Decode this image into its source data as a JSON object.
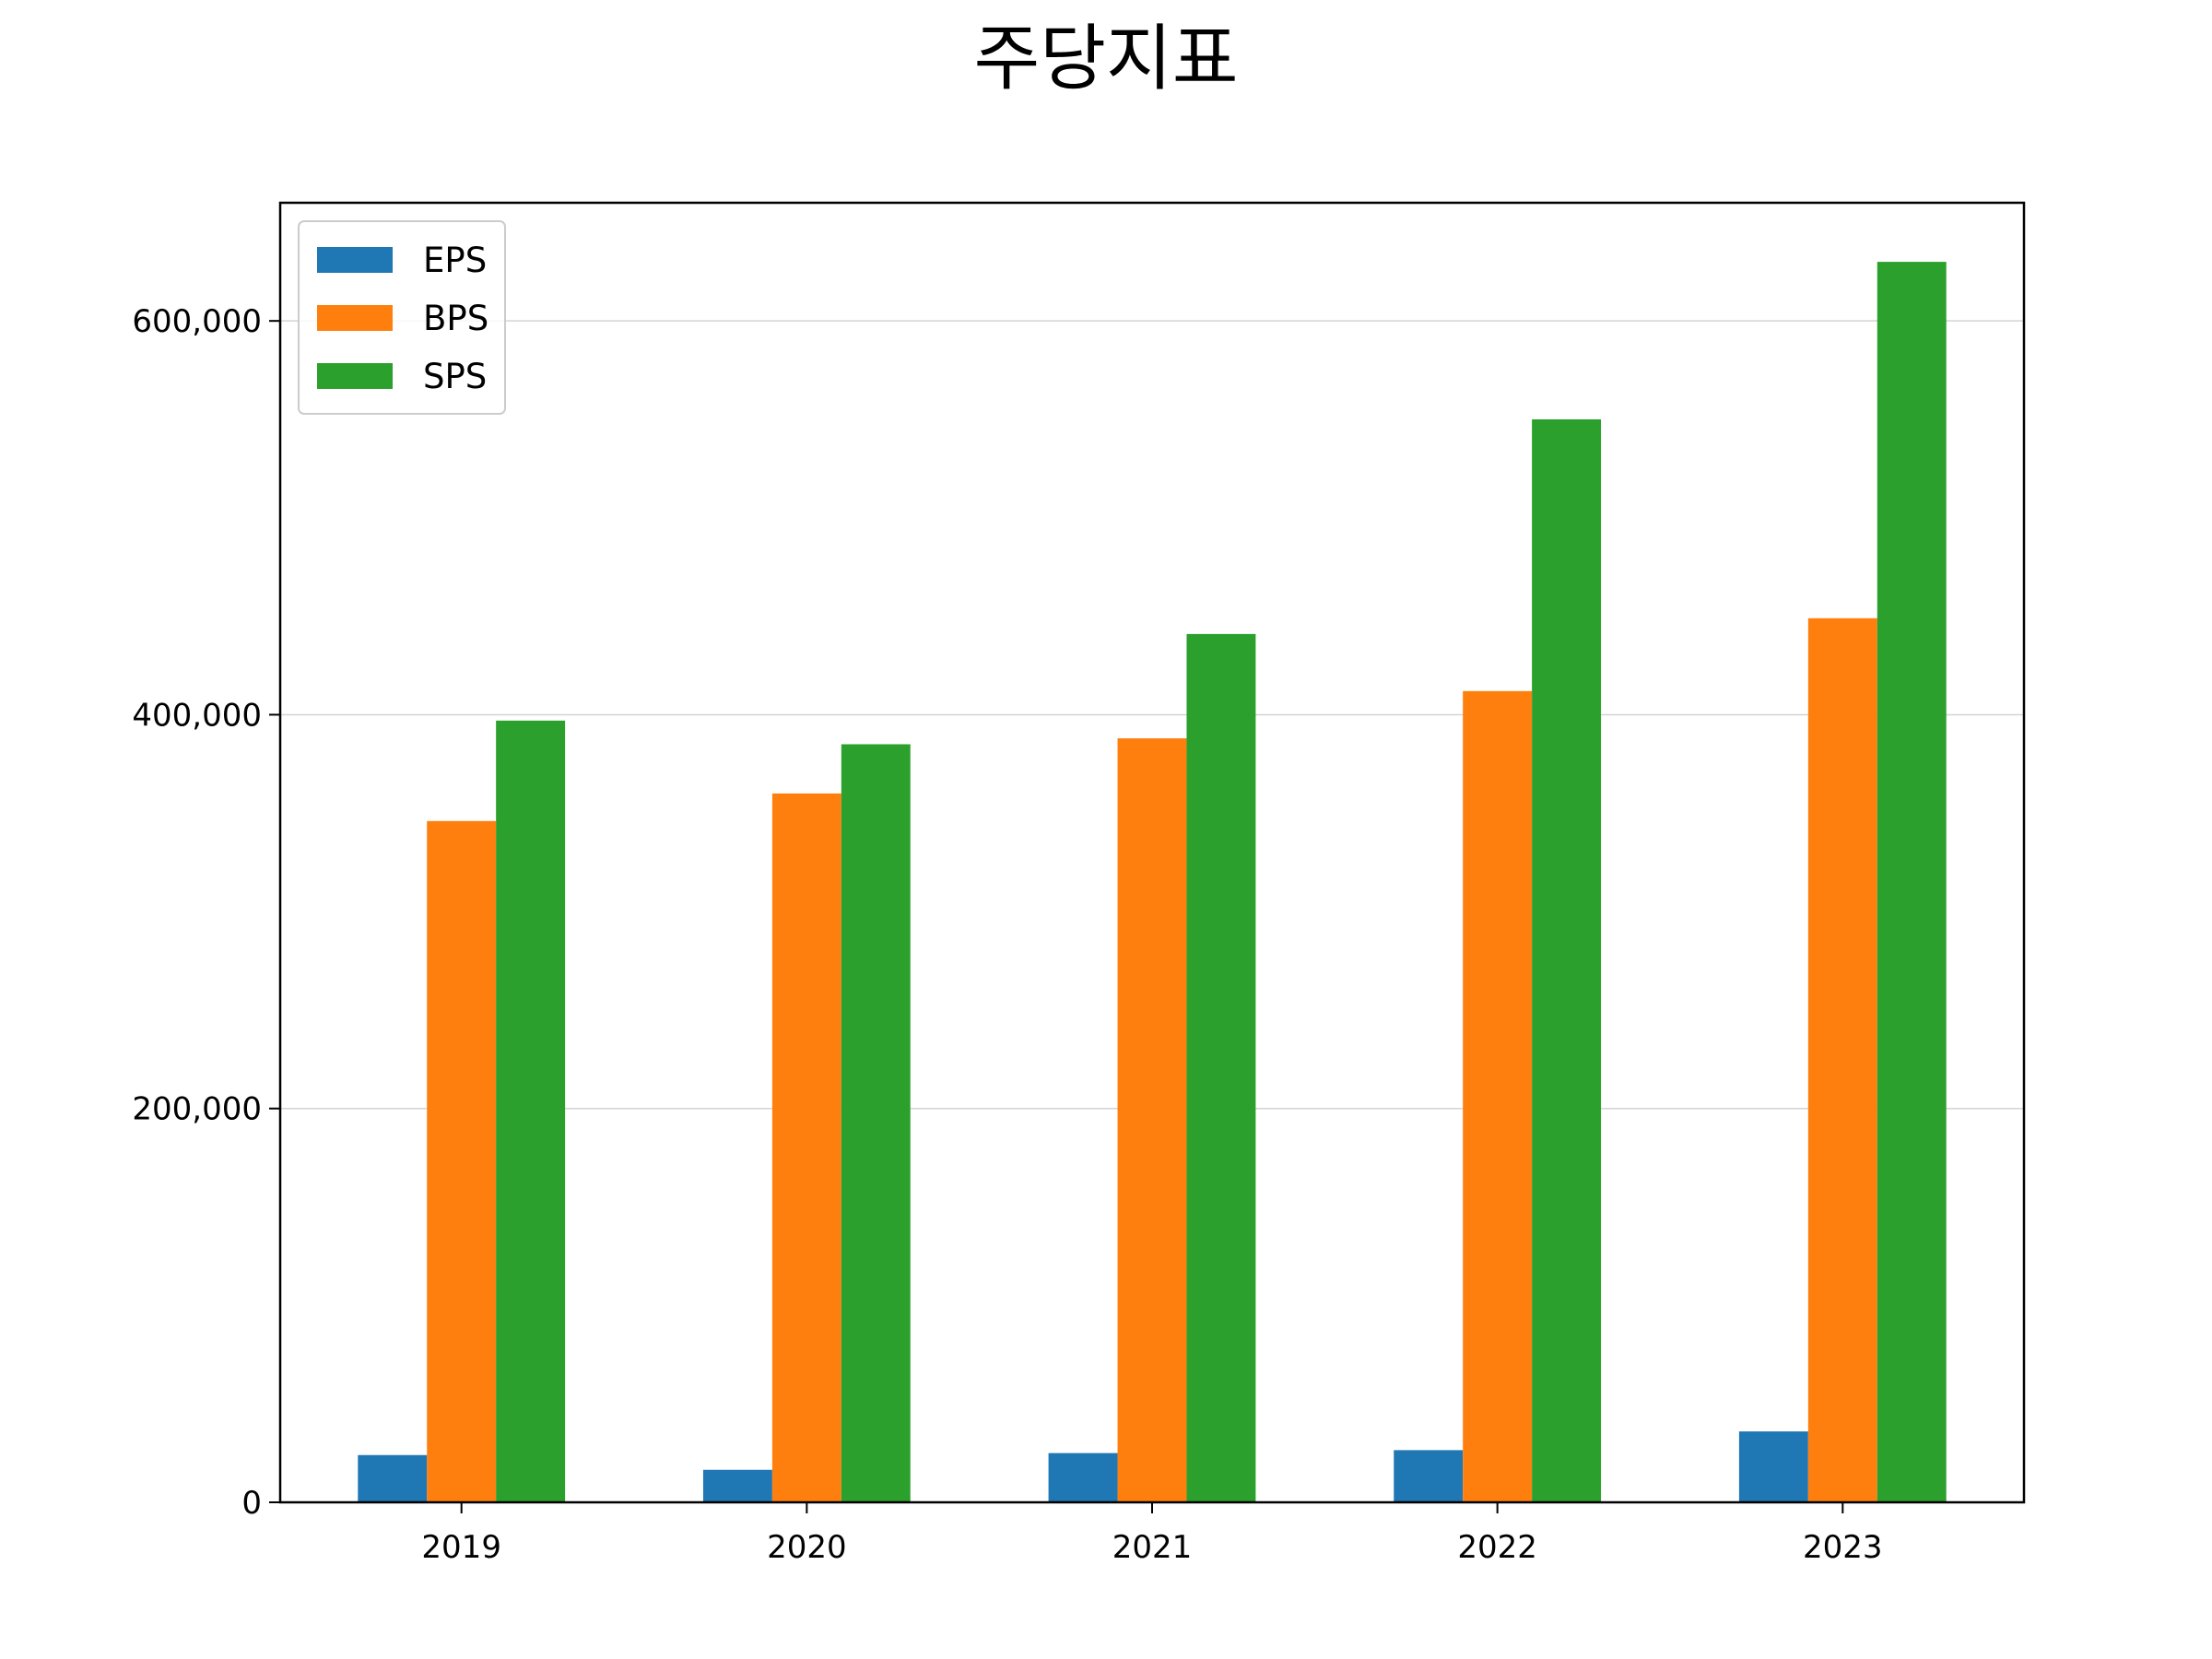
{
  "chart_data": {
    "type": "bar",
    "title": "주당지표",
    "xlabel": "",
    "ylabel": "",
    "categories": [
      "2019",
      "2020",
      "2021",
      "2022",
      "2023"
    ],
    "series": [
      {
        "name": "EPS",
        "color": "#1f77b4",
        "values": [
          24000,
          16500,
          25000,
          26500,
          36000
        ]
      },
      {
        "name": "BPS",
        "color": "#ff7f0e",
        "values": [
          346000,
          360000,
          388000,
          412000,
          449000
        ]
      },
      {
        "name": "SPS",
        "color": "#2ca02c",
        "values": [
          397000,
          385000,
          441000,
          550000,
          630000
        ]
      }
    ],
    "ylim": [
      0,
      660000
    ],
    "yticks": [
      0,
      200000,
      400000,
      600000
    ],
    "ytick_labels": [
      "0",
      "200,000",
      "400,000",
      "600,000"
    ],
    "grid": {
      "y": true,
      "x": false,
      "color": "#d3d3d3"
    },
    "legend_position": "top-left"
  }
}
